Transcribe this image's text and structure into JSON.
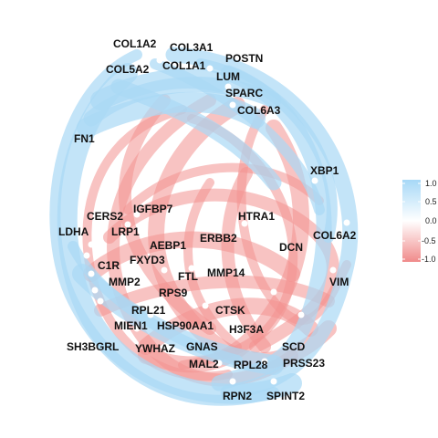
{
  "genes": [
    {
      "name": "COL1A2"
    },
    {
      "name": "COL3A1"
    },
    {
      "name": "POSTN"
    },
    {
      "name": "COL5A2"
    },
    {
      "name": "COL1A1"
    },
    {
      "name": "LUM"
    },
    {
      "name": "SPARC"
    },
    {
      "name": "COL6A3"
    },
    {
      "name": "FN1"
    },
    {
      "name": "XBP1"
    },
    {
      "name": "IGFBP7"
    },
    {
      "name": "CERS2"
    },
    {
      "name": "HTRA1"
    },
    {
      "name": "LDHA"
    },
    {
      "name": "LRP1"
    },
    {
      "name": "COL6A2"
    },
    {
      "name": "AEBP1"
    },
    {
      "name": "ERBB2"
    },
    {
      "name": "DCN"
    },
    {
      "name": "FXYD3"
    },
    {
      "name": "C1R"
    },
    {
      "name": "MMP14"
    },
    {
      "name": "MMP2"
    },
    {
      "name": "FTL"
    },
    {
      "name": "VIM"
    },
    {
      "name": "RPS9"
    },
    {
      "name": "RPL21"
    },
    {
      "name": "CTSK"
    },
    {
      "name": "MIEN1"
    },
    {
      "name": "HSP90AA1"
    },
    {
      "name": "H3F3A"
    },
    {
      "name": "SH3BGRL"
    },
    {
      "name": "YWHAZ"
    },
    {
      "name": "GNAS"
    },
    {
      "name": "SCD"
    },
    {
      "name": "MAL2"
    },
    {
      "name": "RPL28"
    },
    {
      "name": "PRSS23"
    },
    {
      "name": "RPN2"
    },
    {
      "name": "SPINT2"
    }
  ],
  "colorbar": {
    "ticks": [
      "1.0",
      "0.5",
      "0.0",
      "-0.5",
      "-1.0"
    ],
    "colors": {
      "high": "#a6d8f7",
      "mid": "#ffffff",
      "low": "#f08a8a"
    }
  },
  "edge_colors": {
    "positive": "#aad8f5",
    "negative": "#f3928f",
    "node": "#ffffff"
  }
}
